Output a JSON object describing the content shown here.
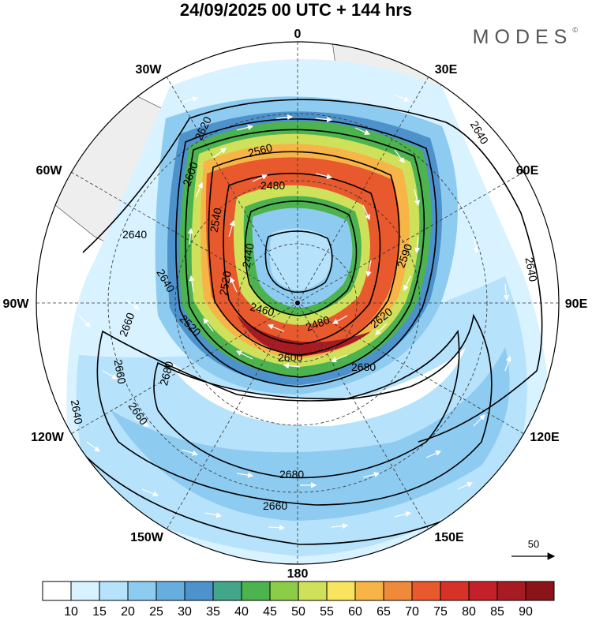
{
  "header": {
    "title": "24/09/2025  00 UTC  + 144 hrs",
    "brand": "MODES",
    "brand_mark": "©"
  },
  "longitude_labels": {
    "n0": "0",
    "n30e": "30E",
    "n60e": "60E",
    "n90e": "90E",
    "n120e": "120E",
    "n150e": "150E",
    "n180": "180",
    "n150w": "150W",
    "n120w": "120W",
    "n90w": "90W",
    "n60w": "60W",
    "n30w": "30W"
  },
  "contour_labels": [
    "2620",
    "2640",
    "2600",
    "2560",
    "2540",
    "2480",
    "2640",
    "2440",
    "2640",
    "2640",
    "2520",
    "2590",
    "2460",
    "2480",
    "2620",
    "2660",
    "2600",
    "2520",
    "2680",
    "2660",
    "2680",
    "2660",
    "2640",
    "2680",
    "2660"
  ],
  "vector_reference": {
    "value": "50"
  },
  "colorbar": {
    "ticks": [
      "10",
      "15",
      "20",
      "25",
      "30",
      "35",
      "40",
      "45",
      "50",
      "55",
      "60",
      "65",
      "70",
      "75",
      "80",
      "85",
      "90"
    ],
    "colors": [
      "#ffffff",
      "#d8f2ff",
      "#b6e2fb",
      "#8ecbf0",
      "#66aede",
      "#4d92ca",
      "#43a58a",
      "#4cb34f",
      "#8ccd47",
      "#cfe15b",
      "#f8e45e",
      "#f6b546",
      "#ef8a3a",
      "#e8592d",
      "#d83228",
      "#c4202a",
      "#a61c22",
      "#8a1419"
    ]
  },
  "colors": {
    "land": "#eeeeee",
    "contour": "#000000",
    "arrows": "#ffffff"
  }
}
